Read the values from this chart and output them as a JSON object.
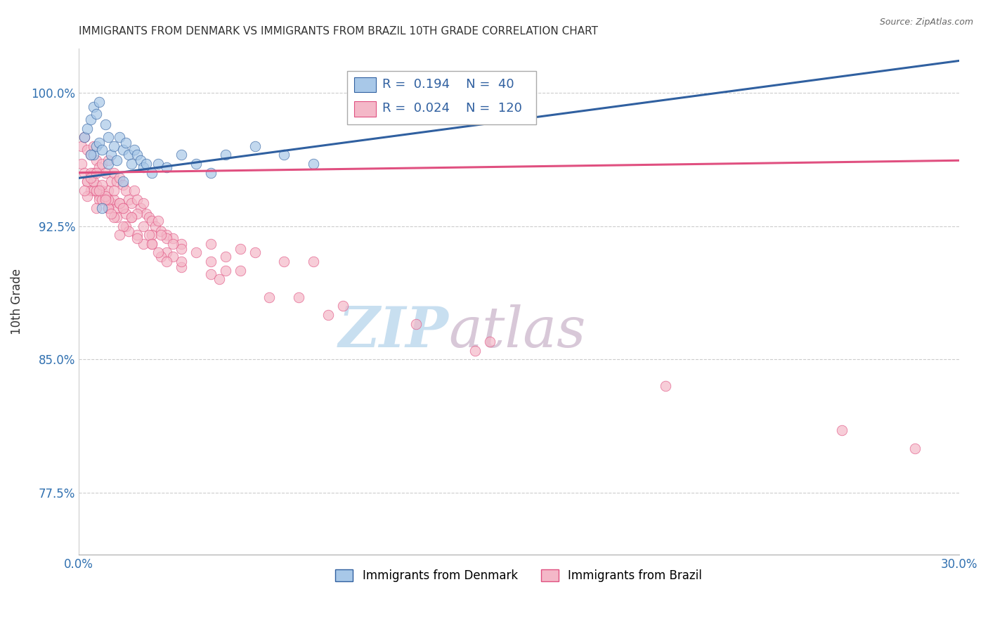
{
  "title": "IMMIGRANTS FROM DENMARK VS IMMIGRANTS FROM BRAZIL 10TH GRADE CORRELATION CHART",
  "source": "Source: ZipAtlas.com",
  "ylabel": "10th Grade",
  "xlim": [
    0.0,
    30.0
  ],
  "ylim": [
    74.0,
    102.5
  ],
  "yticks": [
    77.5,
    85.0,
    92.5,
    100.0
  ],
  "ytick_labels": [
    "77.5%",
    "85.0%",
    "92.5%",
    "100.0%"
  ],
  "legend_denmark": "Immigrants from Denmark",
  "legend_brazil": "Immigrants from Brazil",
  "r_denmark": "0.194",
  "n_denmark": "40",
  "r_brazil": "0.024",
  "n_brazil": "120",
  "blue_color": "#a8c8e8",
  "pink_color": "#f4b8c8",
  "blue_line_color": "#3060a0",
  "pink_line_color": "#e05080",
  "title_color": "#333333",
  "source_color": "#666666",
  "axis_label_color": "#3070b0",
  "watermark_zip_color": "#c8dff0",
  "watermark_atlas_color": "#d8c8d8",
  "denmark_x": [
    0.2,
    0.3,
    0.4,
    0.5,
    0.5,
    0.6,
    0.6,
    0.7,
    0.7,
    0.8,
    0.9,
    1.0,
    1.0,
    1.1,
    1.2,
    1.3,
    1.4,
    1.5,
    1.6,
    1.7,
    1.8,
    1.9,
    2.0,
    2.1,
    2.2,
    2.3,
    2.5,
    2.7,
    3.0,
    3.5,
    4.0,
    4.5,
    5.0,
    6.0,
    7.0,
    8.0,
    11.0,
    0.4,
    0.8,
    1.5
  ],
  "denmark_y": [
    97.5,
    98.0,
    98.5,
    99.2,
    96.5,
    97.0,
    98.8,
    97.2,
    99.5,
    96.8,
    98.2,
    97.5,
    96.0,
    96.5,
    97.0,
    96.2,
    97.5,
    96.8,
    97.2,
    96.5,
    96.0,
    96.8,
    96.5,
    96.2,
    95.8,
    96.0,
    95.5,
    96.0,
    95.8,
    96.5,
    96.0,
    95.5,
    96.5,
    97.0,
    96.5,
    96.0,
    100.5,
    96.5,
    93.5,
    95.0
  ],
  "brazil_x": [
    0.1,
    0.1,
    0.2,
    0.2,
    0.3,
    0.3,
    0.4,
    0.4,
    0.5,
    0.5,
    0.6,
    0.6,
    0.7,
    0.7,
    0.8,
    0.8,
    0.9,
    0.9,
    1.0,
    1.0,
    1.1,
    1.1,
    1.2,
    1.2,
    1.3,
    1.3,
    1.4,
    1.4,
    1.5,
    1.5,
    1.6,
    1.7,
    1.8,
    1.9,
    2.0,
    2.1,
    2.2,
    2.3,
    2.4,
    2.5,
    2.6,
    2.7,
    2.8,
    3.0,
    3.2,
    3.5,
    4.0,
    4.5,
    5.0,
    5.5,
    6.0,
    7.0,
    8.0,
    0.3,
    0.5,
    0.7,
    1.0,
    1.3,
    1.6,
    2.0,
    2.5,
    3.0,
    0.4,
    0.8,
    1.2,
    1.7,
    2.2,
    2.8,
    3.5,
    0.6,
    1.0,
    1.5,
    2.0,
    2.7,
    3.5,
    4.5,
    0.5,
    1.0,
    1.8,
    2.5,
    0.4,
    0.9,
    1.6,
    2.4,
    3.2,
    0.6,
    1.2,
    2.0,
    3.0,
    0.8,
    1.4,
    2.2,
    3.5,
    5.0,
    0.7,
    1.5,
    2.8,
    4.5,
    7.5,
    11.5,
    0.9,
    1.8,
    3.2,
    5.5,
    9.0,
    14.0,
    0.3,
    1.1,
    2.5,
    4.8,
    8.5,
    13.5,
    20.0,
    26.0,
    28.5,
    0.2,
    0.6,
    1.4,
    3.0,
    6.5
  ],
  "brazil_y": [
    97.0,
    96.0,
    97.5,
    95.5,
    96.8,
    95.0,
    96.5,
    94.5,
    97.0,
    95.5,
    96.2,
    94.8,
    95.8,
    94.2,
    96.0,
    94.5,
    95.5,
    94.0,
    96.2,
    94.5,
    95.0,
    93.8,
    95.5,
    94.0,
    95.0,
    93.5,
    95.2,
    93.8,
    94.8,
    93.5,
    94.5,
    94.0,
    93.8,
    94.5,
    94.0,
    93.5,
    93.8,
    93.2,
    93.0,
    92.8,
    92.5,
    92.8,
    92.2,
    92.0,
    91.8,
    91.5,
    91.0,
    91.5,
    90.8,
    91.2,
    91.0,
    90.5,
    90.5,
    95.0,
    94.5,
    94.0,
    93.5,
    93.0,
    92.5,
    92.0,
    91.5,
    91.0,
    95.5,
    94.0,
    93.0,
    92.2,
    91.5,
    90.8,
    90.2,
    94.5,
    93.5,
    92.5,
    91.8,
    91.0,
    90.5,
    89.8,
    95.0,
    94.0,
    93.0,
    92.0,
    95.2,
    94.2,
    93.2,
    92.0,
    90.8,
    95.5,
    94.5,
    93.2,
    91.8,
    94.8,
    93.8,
    92.5,
    91.2,
    90.0,
    94.5,
    93.5,
    92.0,
    90.5,
    88.5,
    87.0,
    94.0,
    93.0,
    91.5,
    90.0,
    88.0,
    86.0,
    94.2,
    93.2,
    91.5,
    89.5,
    87.5,
    85.5,
    83.5,
    81.0,
    80.0,
    94.5,
    93.5,
    92.0,
    90.5,
    88.5
  ]
}
